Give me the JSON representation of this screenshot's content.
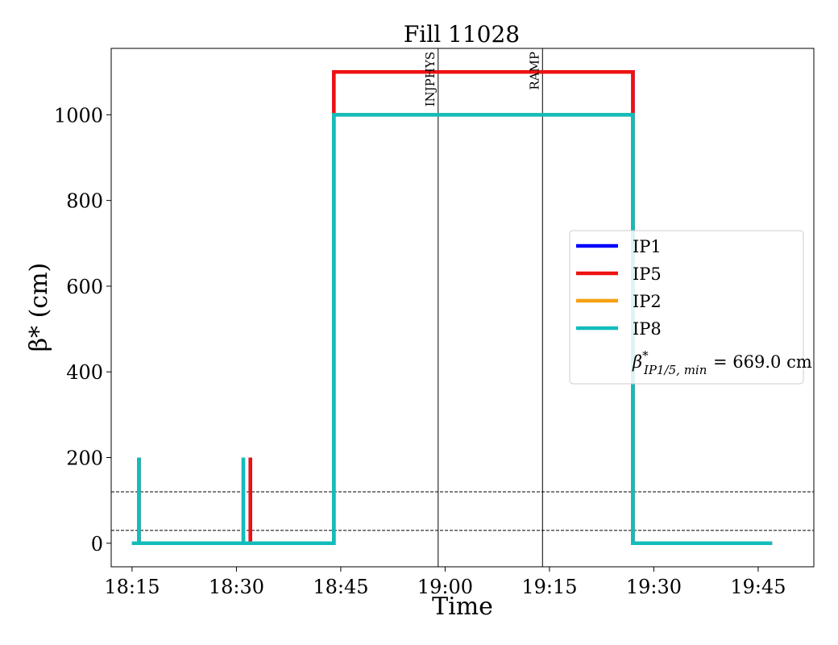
{
  "chart_data": {
    "type": "line",
    "title": "Fill 11028",
    "xlabel": "Time",
    "ylabel": "β* (cm)",
    "x_range": [
      "18:12",
      "19:53"
    ],
    "y_range": [
      -55,
      1155
    ],
    "x_ticks": [
      "18:15",
      "18:30",
      "18:45",
      "19:00",
      "19:15",
      "19:30",
      "19:45"
    ],
    "y_ticks": [
      0,
      200,
      400,
      600,
      800,
      1000
    ],
    "grid": false,
    "legend_position": "center-right",
    "series": [
      {
        "name": "IP1",
        "color": "#0000ff",
        "points": [
          [
            "18:15",
            0
          ],
          [
            "18:16",
            0
          ],
          [
            "18:16",
            200
          ],
          [
            "18:16",
            0
          ],
          [
            "18:32",
            0
          ],
          [
            "18:32",
            200
          ],
          [
            "18:32",
            0
          ],
          [
            "18:44",
            0
          ],
          [
            "18:44",
            1100
          ],
          [
            "19:27",
            1100
          ],
          [
            "19:27",
            0
          ],
          [
            "19:47",
            0
          ]
        ]
      },
      {
        "name": "IP5",
        "color": "#ee1111",
        "points": [
          [
            "18:15",
            0
          ],
          [
            "18:16",
            0
          ],
          [
            "18:16",
            200
          ],
          [
            "18:16",
            0
          ],
          [
            "18:32",
            0
          ],
          [
            "18:32",
            200
          ],
          [
            "18:32",
            0
          ],
          [
            "18:44",
            0
          ],
          [
            "18:44",
            1100
          ],
          [
            "19:27",
            1100
          ],
          [
            "19:27",
            0
          ],
          [
            "19:47",
            0
          ]
        ]
      },
      {
        "name": "IP2",
        "color": "#f5a010",
        "points": [
          [
            "18:15",
            0
          ],
          [
            "18:16",
            0
          ],
          [
            "18:16",
            200
          ],
          [
            "18:16",
            0
          ],
          [
            "18:31",
            0
          ],
          [
            "18:31",
            200
          ],
          [
            "18:31",
            0
          ],
          [
            "18:44",
            0
          ],
          [
            "18:44",
            1000
          ],
          [
            "19:27",
            1000
          ],
          [
            "19:27",
            0
          ],
          [
            "19:47",
            0
          ]
        ]
      },
      {
        "name": "IP8",
        "color": "#12bcbc",
        "points": [
          [
            "18:15",
            0
          ],
          [
            "18:16",
            0
          ],
          [
            "18:16",
            200
          ],
          [
            "18:16",
            0
          ],
          [
            "18:31",
            0
          ],
          [
            "18:31",
            200
          ],
          [
            "18:31",
            0
          ],
          [
            "18:44",
            0
          ],
          [
            "18:44",
            1000
          ],
          [
            "19:27",
            1000
          ],
          [
            "19:27",
            0
          ],
          [
            "19:47",
            0
          ]
        ]
      }
    ],
    "vertical_markers": [
      {
        "label": "INJPHYS",
        "time": "18:59"
      },
      {
        "label": "RAMP",
        "time": "19:14"
      }
    ],
    "horizontal_reference_lines": [
      30,
      120
    ],
    "legend_extra": {
      "symbol": "β",
      "superscript": "*",
      "subscript": "IP1/5, min",
      "text": "= 669.0 cm"
    }
  }
}
